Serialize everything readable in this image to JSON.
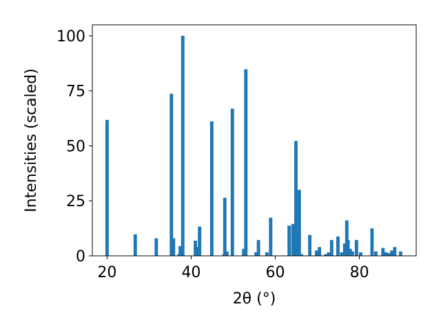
{
  "chart_data": {
    "type": "bar",
    "title": "",
    "xlabel": "2θ (°)",
    "ylabel": "Intensities (scaled)",
    "xlim": [
      16.5,
      93.5
    ],
    "ylim": [
      0,
      105
    ],
    "x_ticks": [
      20,
      40,
      60,
      80
    ],
    "y_ticks": [
      0,
      25,
      50,
      75,
      100
    ],
    "x_tick_labels": [
      "20",
      "40",
      "60",
      "80"
    ],
    "y_tick_labels": [
      "0",
      "25",
      "50",
      "75",
      "100"
    ],
    "grid": false,
    "bar_color": "#1f77b4",
    "bar_width": 0.8,
    "series": [
      {
        "x": [
          20.0,
          26.7,
          31.7,
          35.3,
          35.8,
          37.1,
          37.4,
          38.0,
          41.0,
          41.5,
          42.0,
          44.9,
          47.8,
          48.0,
          48.5,
          49.8,
          52.5,
          53.0,
          55.4,
          56.0,
          58.0,
          58.9,
          63.3,
          64.2,
          64.9,
          65.3,
          65.7,
          66.2,
          68.2,
          69.8,
          70.5,
          72.0,
          72.7,
          73.4,
          74.9,
          75.8,
          76.5,
          77.0,
          77.3,
          77.8,
          78.3,
          79.3,
          80.3,
          83.0,
          83.9,
          85.6,
          86.3,
          87.1,
          87.7,
          88.4,
          89.8
        ],
        "values": [
          61.8,
          9.8,
          8.0,
          73.7,
          8.0,
          0.8,
          4.4,
          100.0,
          6.9,
          4.0,
          13.3,
          61.1,
          0.8,
          26.4,
          2.0,
          66.9,
          3.2,
          84.8,
          1.6,
          7.2,
          1.6,
          17.3,
          13.7,
          14.5,
          52.2,
          11.3,
          30.0,
          0.8,
          9.5,
          2.4,
          4.0,
          0.8,
          1.6,
          7.2,
          8.8,
          1.6,
          5.6,
          16.1,
          7.2,
          3.2,
          2.0,
          7.2,
          1.6,
          12.5,
          2.0,
          3.6,
          1.6,
          1.2,
          2.4,
          4.0,
          2.0
        ]
      }
    ]
  }
}
